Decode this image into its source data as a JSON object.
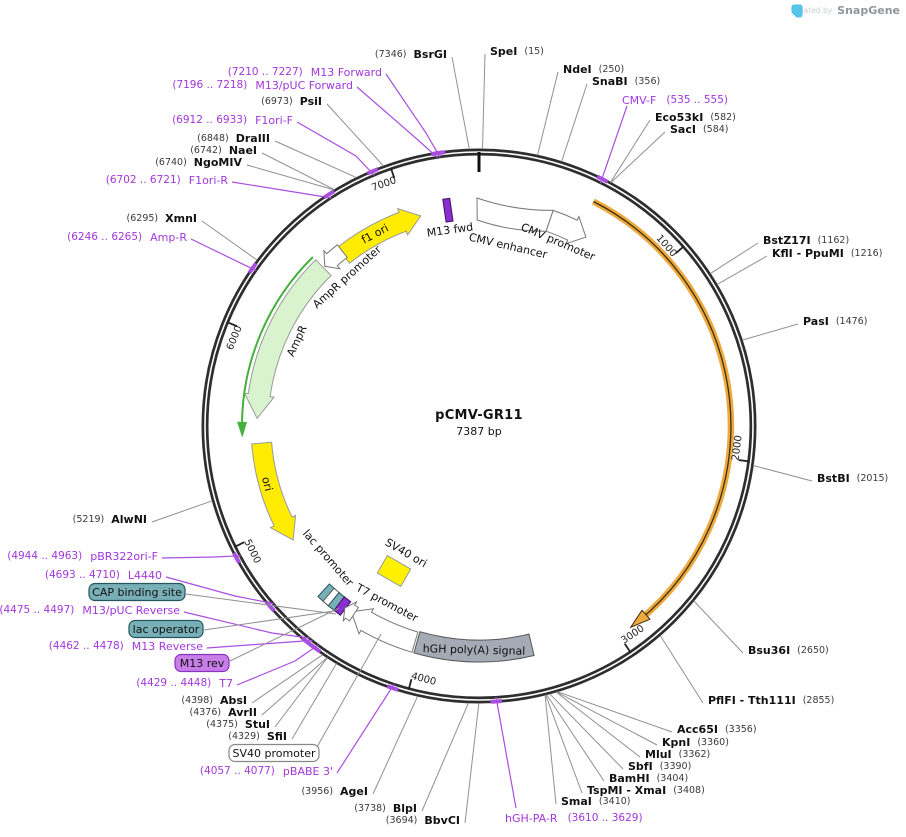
{
  "watermark": {
    "created_by": "Created by",
    "brand": "SnapGene"
  },
  "plasmid": {
    "name": "pCMV-GR11",
    "size": "7387 bp",
    "length_bp": 7387
  },
  "tick_labels": [
    "1000",
    "2000",
    "3000",
    "4000",
    "5000",
    "6000",
    "7000"
  ],
  "enzymes": [
    {
      "name": "SpeI",
      "pos": "(15)",
      "bp": 15
    },
    {
      "name": "NdeI",
      "pos": "(250)",
      "bp": 250
    },
    {
      "name": "SnaBI",
      "pos": "(356)",
      "bp": 356
    },
    {
      "name": "Eco53kI",
      "pos": "(582)",
      "bp": 582
    },
    {
      "name": "SacI",
      "pos": "(584)",
      "bp": 584
    },
    {
      "name": "BstZ17I",
      "pos": "(1162)",
      "bp": 1162
    },
    {
      "name": "KflI - PpuMI",
      "pos": "(1216)",
      "bp": 1216
    },
    {
      "name": "PasI",
      "pos": "(1476)",
      "bp": 1476
    },
    {
      "name": "BstBI",
      "pos": "(2015)",
      "bp": 2015
    },
    {
      "name": "Bsu36I",
      "pos": "(2650)",
      "bp": 2650
    },
    {
      "name": "PflFI - Tth111I",
      "pos": "(2855)",
      "bp": 2855
    },
    {
      "name": "Acc65I",
      "pos": "(3356)",
      "bp": 3356
    },
    {
      "name": "KpnI",
      "pos": "(3360)",
      "bp": 3360
    },
    {
      "name": "MluI",
      "pos": "(3362)",
      "bp": 3362
    },
    {
      "name": "SbfI",
      "pos": "(3390)",
      "bp": 3390
    },
    {
      "name": "BamHI",
      "pos": "(3404)",
      "bp": 3404
    },
    {
      "name": "TspMI - XmaI",
      "pos": "(3408)",
      "bp": 3408
    },
    {
      "name": "SmaI",
      "pos": "(3410)",
      "bp": 3410
    },
    {
      "name": "BbvCI",
      "pos": "(3694)",
      "bp": 3694
    },
    {
      "name": "BlpI",
      "pos": "(3738)",
      "bp": 3738
    },
    {
      "name": "AgeI",
      "pos": "(3956)",
      "bp": 3956
    },
    {
      "name": "SfiI",
      "pos": "(4329)",
      "bp": 4329
    },
    {
      "name": "StuI",
      "pos": "(4375)",
      "bp": 4375
    },
    {
      "name": "AvrII",
      "pos": "(4376)",
      "bp": 4376
    },
    {
      "name": "AbsI",
      "pos": "(4398)",
      "bp": 4398
    },
    {
      "name": "AlwNI",
      "pos": "(5219)",
      "bp": 5219
    },
    {
      "name": "XmnI",
      "pos": "(6295)",
      "bp": 6295
    },
    {
      "name": "NgoMIV",
      "pos": "(6740)",
      "bp": 6740
    },
    {
      "name": "NaeI",
      "pos": "(6742)",
      "bp": 6742
    },
    {
      "name": "DraIII",
      "pos": "(6848)",
      "bp": 6848
    },
    {
      "name": "PsiI",
      "pos": "(6973)",
      "bp": 6973
    },
    {
      "name": "BsrGI",
      "pos": "(7346)",
      "bp": 7346
    }
  ],
  "primers": [
    {
      "name": "M13 Forward",
      "range": "(7210 .. 7227)",
      "bp": 7218
    },
    {
      "name": "M13/pUC Forward",
      "range": "(7196 .. 7218)",
      "bp": 7207
    },
    {
      "name": "F1ori-F",
      "range": "(6912 .. 6933)",
      "bp": 6922
    },
    {
      "name": "F1ori-R",
      "range": "(6702 .. 6721)",
      "bp": 6712
    },
    {
      "name": "Amp-R",
      "range": "(6246 .. 6265)",
      "bp": 6256
    },
    {
      "name": "pBR322ori-F",
      "range": "(4944 .. 4963)",
      "bp": 4954
    },
    {
      "name": "L4440",
      "range": "(4693 .. 4710)",
      "bp": 4702
    },
    {
      "name": "M13/pUC Reverse",
      "range": "(4475 .. 4497)",
      "bp": 4486
    },
    {
      "name": "M13 Reverse",
      "range": "(4462 .. 4478)",
      "bp": 4470
    },
    {
      "name": "T7",
      "range": "(4429 .. 4448)",
      "bp": 4438
    },
    {
      "name": "pBABE 3'",
      "range": "(4057 .. 4077)",
      "bp": 4067
    },
    {
      "name": "CMV-F",
      "range": "(535 .. 555)",
      "bp": 545
    },
    {
      "name": "hGH-PA-R",
      "range": "(3610 .. 3629)",
      "bp": 3620
    }
  ],
  "boxed_labels": [
    {
      "id": "cap-binding-site",
      "label": "CAP binding site"
    },
    {
      "id": "lac-operator",
      "label": "lac operator"
    },
    {
      "id": "m13-rev",
      "label": "M13 rev"
    },
    {
      "id": "sv40-promoter",
      "label": "SV40 promoter"
    }
  ],
  "features": [
    {
      "id": "f1-ori",
      "label": "f1 ori"
    },
    {
      "id": "ampr",
      "label": "AmpR"
    },
    {
      "id": "ampr-promoter",
      "label": "AmpR promoter"
    },
    {
      "id": "ori",
      "label": "ori"
    },
    {
      "id": "lac-promoter",
      "label": "lac promoter"
    },
    {
      "id": "t7-promoter",
      "label": "T7 promoter"
    },
    {
      "id": "sv40-ori",
      "label": "SV40 ori"
    },
    {
      "id": "m13-fwd",
      "label": "M13 fwd"
    },
    {
      "id": "cmv-enhancer",
      "label": "CMV enhancer"
    },
    {
      "id": "cmv-promoter",
      "label": "CMV promoter"
    },
    {
      "id": "hgh-polya",
      "label": "hGH poly(A) signal"
    }
  ],
  "colors": {
    "ring": "#2e2e2e",
    "insert": "#ECA93F",
    "insert_core": "#3d2f08",
    "yellow": "#FFEC00",
    "pale_green": "#D9F3CF",
    "green": "#43B13C",
    "teal_box": "#79AFB7",
    "purple_box": "#C77EE8",
    "purple_glyph": "#8B2FD0",
    "gray_feature": "#A4ABB4",
    "primer_text": "#A137DB",
    "primer_line": "#A94FE0",
    "enzyme_name": "#111111",
    "enzyme_pos": "#3a3a3a",
    "leader": "#909090"
  }
}
